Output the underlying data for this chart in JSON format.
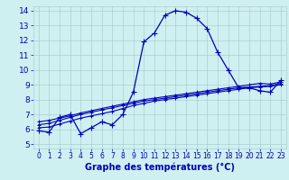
{
  "xlabel": "Graphe des températures (°C)",
  "bg_color": "#cff0f0",
  "grid_color": "#aacfcf",
  "line_color": "#0000bb",
  "xlim": [
    -0.5,
    23.5
  ],
  "ylim": [
    4.7,
    14.3
  ],
  "yticks": [
    5,
    6,
    7,
    8,
    9,
    10,
    11,
    12,
    13,
    14
  ],
  "xticks": [
    0,
    1,
    2,
    3,
    4,
    5,
    6,
    7,
    8,
    9,
    10,
    11,
    12,
    13,
    14,
    15,
    16,
    17,
    18,
    19,
    20,
    21,
    22,
    23
  ],
  "hours": [
    0,
    1,
    2,
    3,
    4,
    5,
    6,
    7,
    8,
    9,
    10,
    11,
    12,
    13,
    14,
    15,
    16,
    17,
    18,
    19,
    20,
    21,
    22,
    23
  ],
  "temp_curve": [
    5.9,
    5.8,
    6.8,
    7.0,
    5.7,
    6.1,
    6.5,
    6.3,
    7.0,
    8.5,
    11.9,
    12.5,
    13.7,
    14.0,
    13.9,
    13.5,
    12.8,
    11.2,
    10.0,
    8.8,
    8.8,
    8.6,
    8.5,
    9.3
  ],
  "line2": [
    6.1,
    6.15,
    6.35,
    6.55,
    6.75,
    6.9,
    7.05,
    7.2,
    7.4,
    7.6,
    7.75,
    7.9,
    8.0,
    8.1,
    8.2,
    8.3,
    8.4,
    8.5,
    8.6,
    8.7,
    8.8,
    8.85,
    8.9,
    9.0
  ],
  "line3": [
    6.3,
    6.4,
    6.6,
    6.8,
    7.0,
    7.15,
    7.3,
    7.45,
    7.6,
    7.75,
    7.9,
    8.0,
    8.1,
    8.2,
    8.3,
    8.4,
    8.5,
    8.6,
    8.7,
    8.8,
    8.85,
    8.9,
    8.95,
    9.1
  ],
  "line4": [
    6.5,
    6.6,
    6.75,
    6.9,
    7.1,
    7.25,
    7.4,
    7.55,
    7.7,
    7.85,
    8.0,
    8.1,
    8.2,
    8.3,
    8.4,
    8.5,
    8.6,
    8.7,
    8.8,
    8.9,
    9.0,
    9.1,
    9.05,
    9.2
  ],
  "xlabel_fontsize": 7.0,
  "tick_fontsize_x": 5.5,
  "tick_fontsize_y": 6.5
}
